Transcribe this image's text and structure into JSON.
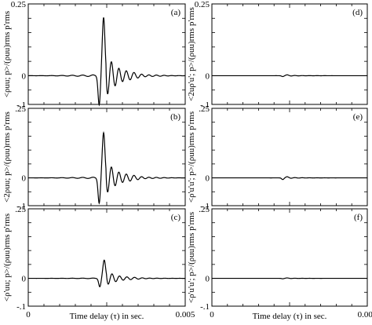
{
  "chart_data": {
    "type": "line",
    "layout": "3 rows x 2 columns, shared x axis per column",
    "x_axis": {
      "label": "Time delay (τ) in sec.",
      "range": [
        0,
        0.005
      ],
      "ticks": [
        "0",
        "0.005"
      ]
    },
    "y_axis": {
      "range": [
        -0.1,
        0.25
      ]
    },
    "panels": [
      {
        "tag": "(a)",
        "ylabel": "<ρuu; p>/(ρuu)rms p'rms",
        "yticks": [
          "0.25",
          "0",
          "-.1"
        ],
        "description": "ringing pulse near τ≈0.0023s, peak ≈0.2, trough ≈-0.1",
        "peak": 0.2,
        "trough": -0.1,
        "peak_x": 0.00238
      },
      {
        "tag": "(b)",
        "ylabel": "<2ρuu; p>/(ρuu)rms p'rms",
        "yticks": [
          ".25",
          "0",
          "-.1"
        ],
        "peak": 0.16,
        "trough": -0.09,
        "peak_x": 0.00238
      },
      {
        "tag": "(c)",
        "ylabel": "<ρ'uu; p>/(ρuu)rms p'rms",
        "yticks": [
          ".25",
          "0",
          "-.1"
        ],
        "peak": 0.065,
        "trough": -0.03,
        "peak_x": 0.0024
      },
      {
        "tag": "(d)",
        "ylabel": "<2uρ'u'; p>/(ρuu)rms p'rms",
        "yticks": [
          "0.25",
          "0",
          "-.1"
        ],
        "peak": 0.003,
        "trough": -0.003,
        "peak_x": 0.0024
      },
      {
        "tag": "(e)",
        "ylabel": "<ρ'u'u'; p>/(ρuu)rms p'rms",
        "yticks": [
          ".25",
          "0",
          "-.1"
        ],
        "peak": 0.004,
        "trough": -0.006,
        "peak_x": 0.0024
      },
      {
        "tag": "(f)",
        "ylabel": "<ρ'u'u'; p>/(ρuu)rms p'rms",
        "yticks": [
          ".25",
          "0",
          "-.1"
        ],
        "peak": 0.0015,
        "trough": -0.0015,
        "peak_x": 0.0024
      }
    ]
  }
}
